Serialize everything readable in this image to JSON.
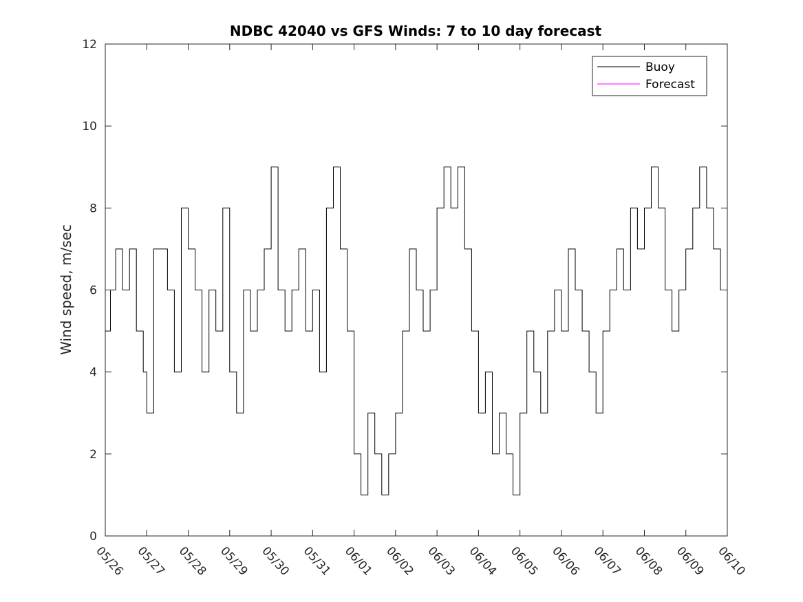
{
  "chart_data": {
    "type": "line",
    "title": "NDBC 42040 vs GFS Winds: 7 to 10 day forecast",
    "ylabel": "Wind speed, m/sec",
    "xlabel": "",
    "ylim": [
      0,
      12
    ],
    "yticks": [
      "0",
      "2",
      "4",
      "6",
      "8",
      "10",
      "12"
    ],
    "xlim": [
      "05/26",
      "06/10"
    ],
    "xticks": [
      "05/26",
      "05/27",
      "05/28",
      "05/29",
      "05/30",
      "05/31",
      "06/01",
      "06/02",
      "06/03",
      "06/04",
      "06/05",
      "06/06",
      "06/07",
      "06/08",
      "06/09",
      "06/10"
    ],
    "legend": {
      "placement": "top-right",
      "entries": [
        {
          "name": "Buoy",
          "color": "#000000"
        },
        {
          "name": "Forecast",
          "color": "#ff00ff"
        }
      ]
    },
    "grid": false,
    "series": [
      {
        "name": "Buoy",
        "color": "#000000",
        "step": true,
        "x": [
          "05/26 00:00",
          "05/26 03:00",
          "05/26 06:00",
          "05/26 10:00",
          "05/26 14:00",
          "05/26 18:00",
          "05/26 22:00",
          "05/27 00:00",
          "05/27 04:00",
          "05/27 08:00",
          "05/27 12:00",
          "05/27 16:00",
          "05/27 20:00",
          "05/28 00:00",
          "05/28 04:00",
          "05/28 08:00",
          "05/28 12:00",
          "05/28 16:00",
          "05/28 20:00",
          "05/29 00:00",
          "05/29 04:00",
          "05/29 08:00",
          "05/29 12:00",
          "05/29 16:00",
          "05/29 20:00",
          "05/30 00:00",
          "05/30 04:00",
          "05/30 08:00",
          "05/30 12:00",
          "05/30 16:00",
          "05/30 20:00",
          "05/31 00:00",
          "05/31 04:00",
          "05/31 08:00",
          "05/31 12:00",
          "05/31 16:00",
          "05/31 20:00",
          "06/01 00:00",
          "06/01 04:00",
          "06/01 08:00",
          "06/01 12:00",
          "06/01 16:00",
          "06/01 20:00",
          "06/02 00:00",
          "06/02 04:00",
          "06/02 08:00",
          "06/02 12:00",
          "06/02 16:00",
          "06/02 20:00",
          "06/03 00:00",
          "06/03 04:00",
          "06/03 08:00",
          "06/03 12:00",
          "06/03 16:00",
          "06/03 20:00",
          "06/04 00:00",
          "06/04 04:00",
          "06/04 08:00",
          "06/04 12:00",
          "06/04 16:00",
          "06/04 20:00",
          "06/05 00:00",
          "06/05 04:00",
          "06/05 08:00",
          "06/05 12:00",
          "06/05 16:00",
          "06/05 20:00",
          "06/06 00:00",
          "06/06 04:00",
          "06/06 08:00",
          "06/06 12:00",
          "06/06 16:00",
          "06/06 20:00",
          "06/07 00:00",
          "06/07 04:00",
          "06/07 08:00",
          "06/07 12:00",
          "06/07 16:00",
          "06/07 20:00",
          "06/08 00:00",
          "06/08 04:00",
          "06/08 08:00",
          "06/08 12:00",
          "06/08 16:00",
          "06/08 20:00",
          "06/09 00:00",
          "06/09 04:00",
          "06/09 08:00",
          "06/09 12:00",
          "06/09 16:00",
          "06/09 20:00",
          "06/10 00:00"
        ],
        "y": [
          5,
          6,
          7,
          6,
          7,
          5,
          4,
          3,
          7,
          7,
          6,
          4,
          8,
          7,
          6,
          4,
          6,
          5,
          8,
          4,
          3,
          6,
          5,
          6,
          7,
          9,
          6,
          5,
          6,
          7,
          5,
          6,
          4,
          8,
          9,
          7,
          5,
          2,
          1,
          3,
          2,
          1,
          2,
          3,
          5,
          7,
          6,
          5,
          6,
          8,
          9,
          8,
          9,
          7,
          5,
          3,
          4,
          2,
          3,
          2,
          1,
          3,
          5,
          4,
          3,
          5,
          6,
          5,
          7,
          6,
          5,
          4,
          3,
          5,
          6,
          7,
          6,
          8,
          7,
          8,
          9,
          8,
          6,
          5,
          6,
          7,
          8,
          9,
          8,
          7,
          6,
          5
        ],
        "y_note": ""
      }
    ]
  },
  "legend": {
    "buoy_label": "Buoy",
    "forecast_label": "Forecast"
  }
}
